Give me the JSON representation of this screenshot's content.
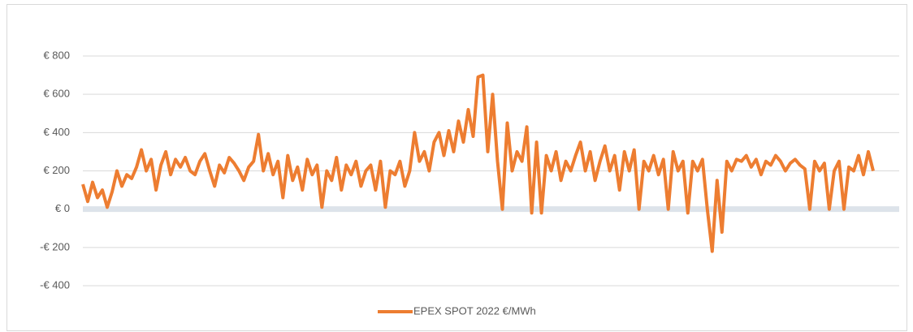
{
  "chart_data": {
    "type": "line",
    "series": [
      {
        "name": "EPEX SPOT 2022 €/MWh",
        "color": "#ed7d31",
        "values": [
          130,
          40,
          140,
          60,
          100,
          10,
          90,
          200,
          120,
          180,
          160,
          220,
          310,
          200,
          260,
          100,
          230,
          300,
          180,
          260,
          220,
          270,
          200,
          180,
          250,
          290,
          200,
          120,
          230,
          190,
          270,
          240,
          200,
          150,
          220,
          250,
          390,
          200,
          290,
          180,
          250,
          60,
          280,
          150,
          220,
          100,
          260,
          180,
          230,
          10,
          200,
          150,
          270,
          100,
          230,
          180,
          250,
          120,
          200,
          230,
          100,
          250,
          10,
          200,
          180,
          250,
          120,
          200,
          400,
          250,
          300,
          200,
          350,
          400,
          280,
          410,
          300,
          460,
          350,
          520,
          380,
          690,
          700,
          300,
          600,
          250,
          0,
          450,
          200,
          300,
          250,
          430,
          -20,
          350,
          -20,
          280,
          200,
          300,
          150,
          250,
          200,
          280,
          350,
          200,
          300,
          150,
          250,
          330,
          200,
          280,
          100,
          300,
          200,
          310,
          0,
          250,
          200,
          280,
          180,
          260,
          0,
          300,
          200,
          250,
          -20,
          250,
          200,
          260,
          0,
          -220,
          150,
          -120,
          250,
          200,
          260,
          250,
          280,
          220,
          260,
          180,
          250,
          230,
          280,
          250,
          200,
          240,
          260,
          230,
          210,
          0,
          250,
          200,
          240,
          0,
          200,
          250,
          0,
          220,
          200,
          280,
          180,
          300,
          200
        ]
      }
    ],
    "ylim": [
      -400,
      800
    ],
    "yticks": [
      {
        "value": -400,
        "label": "-€ 400"
      },
      {
        "value": -200,
        "label": "-€ 200"
      },
      {
        "value": 0,
        "label": "€ 0"
      },
      {
        "value": 200,
        "label": "€ 200"
      },
      {
        "value": 400,
        "label": "€ 400"
      },
      {
        "value": 600,
        "label": "€ 600"
      },
      {
        "value": 800,
        "label": "€ 800"
      }
    ],
    "grid": true,
    "legend": "bottom"
  }
}
